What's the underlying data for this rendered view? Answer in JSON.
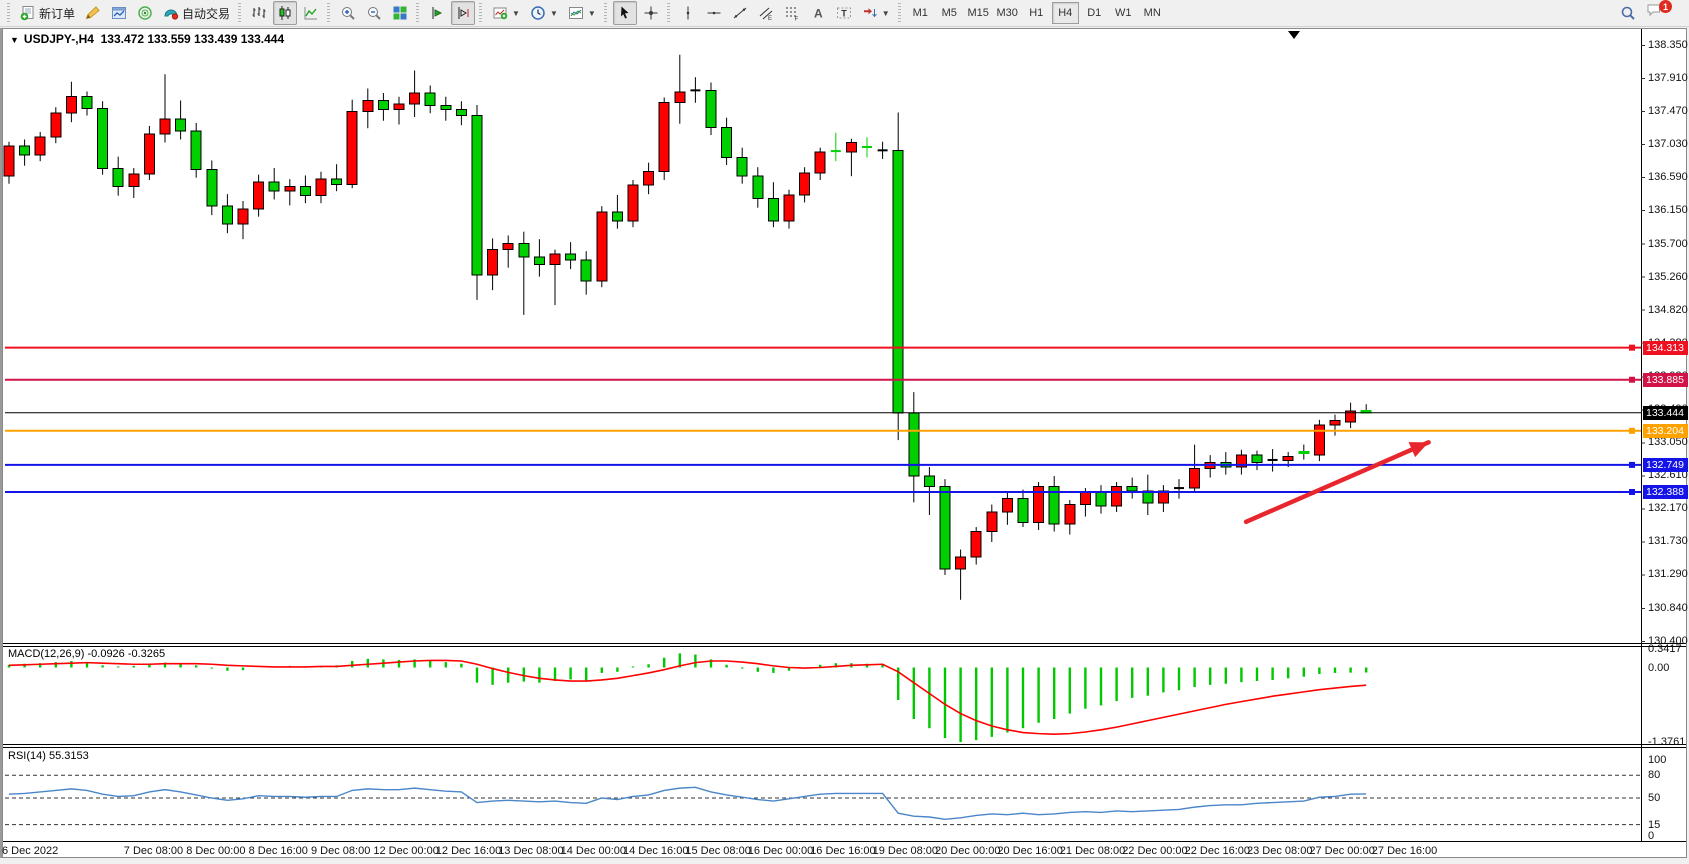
{
  "toolbar": {
    "groups": [
      {
        "name": "file",
        "buttons": [
          {
            "name": "new-order",
            "icon": "new-order-icon",
            "label": "新订单"
          },
          {
            "name": "styler",
            "icon": "crayon-icon"
          },
          {
            "name": "chart-window",
            "icon": "chart-window-icon"
          },
          {
            "name": "market-signal",
            "icon": "signal-icon"
          },
          {
            "name": "auto-trading",
            "icon": "autotrade-icon",
            "label": "自动交易"
          }
        ]
      },
      {
        "name": "chart-type",
        "buttons": [
          {
            "name": "bar-chart",
            "icon": "bars-icon"
          },
          {
            "name": "candlestick-chart",
            "icon": "candles-icon",
            "pressed": true
          },
          {
            "name": "line-chart",
            "icon": "line-icon"
          }
        ]
      },
      {
        "name": "zoom",
        "buttons": [
          {
            "name": "zoom-in",
            "icon": "zoom-in-icon"
          },
          {
            "name": "zoom-out",
            "icon": "zoom-out-icon"
          },
          {
            "name": "tile-windows",
            "icon": "tile-icon"
          }
        ]
      },
      {
        "name": "scroll",
        "buttons": [
          {
            "name": "auto-scroll",
            "icon": "autoscroll-icon"
          },
          {
            "name": "chart-shift",
            "icon": "shift-icon",
            "pressed": true
          }
        ]
      },
      {
        "name": "dropdowns",
        "buttons": [
          {
            "name": "indicators",
            "icon": "indicators-icon",
            "caret": true
          },
          {
            "name": "periods",
            "icon": "clock-icon",
            "caret": true
          },
          {
            "name": "templates",
            "icon": "template-icon",
            "caret": true
          }
        ]
      },
      {
        "name": "pointer",
        "buttons": [
          {
            "name": "cursor",
            "icon": "cursor-icon",
            "pressed": true
          },
          {
            "name": "crosshair",
            "icon": "crosshair-icon"
          }
        ]
      },
      {
        "name": "objects",
        "buttons": [
          {
            "name": "vertical-line",
            "icon": "vline-icon"
          },
          {
            "name": "horizontal-line",
            "icon": "hline-icon"
          },
          {
            "name": "trendline",
            "icon": "trendline-icon"
          },
          {
            "name": "equidistant-channel",
            "icon": "channel-icon"
          },
          {
            "name": "fibonacci",
            "icon": "fibonacci-icon"
          },
          {
            "name": "text",
            "icon": "text-icon"
          },
          {
            "name": "text-label",
            "icon": "label-icon"
          },
          {
            "name": "arrows",
            "icon": "arrows-icon",
            "caret": true
          }
        ]
      }
    ],
    "timeframes": [
      {
        "label": "M1"
      },
      {
        "label": "M5"
      },
      {
        "label": "M15"
      },
      {
        "label": "M30"
      },
      {
        "label": "H1"
      },
      {
        "label": "H4",
        "pressed": true
      },
      {
        "label": "D1"
      },
      {
        "label": "W1"
      },
      {
        "label": "MN"
      }
    ],
    "right": [
      {
        "name": "search",
        "icon": "search-icon"
      },
      {
        "name": "notifications",
        "icon": "chat-icon",
        "badge": "1"
      }
    ]
  },
  "chart": {
    "symbol_period": "USDJPY-,H4",
    "ohlc": "133.472 133.559 133.439 133.444"
  },
  "price_axis": {
    "ticks": [
      "138.350",
      "137.910",
      "137.470",
      "137.030",
      "136.590",
      "136.150",
      "135.700",
      "135.260",
      "134.820",
      "134.380",
      "133.930",
      "133.490",
      "133.050",
      "132.610",
      "132.170",
      "131.730",
      "131.290",
      "130.840",
      "130.400"
    ]
  },
  "hlines": [
    {
      "price": 134.313,
      "label": "134.313",
      "color": "#ef1020",
      "width": 2,
      "handle": true
    },
    {
      "price": 133.885,
      "label": "133.885",
      "color": "#d11348",
      "width": 2,
      "handle": true
    },
    {
      "price": 133.444,
      "label": "133.444",
      "color": "#000000",
      "width": 1,
      "handle": false
    },
    {
      "price": 133.204,
      "label": "133.204",
      "color": "#ffa200",
      "width": 2,
      "handle": true
    },
    {
      "price": 132.749,
      "label": "132.749",
      "color": "#1414e8",
      "width": 2,
      "handle": true
    },
    {
      "price": 132.388,
      "label": "132.388",
      "color": "#1414e8",
      "width": 2,
      "handle": true
    }
  ],
  "time_axis": {
    "labels": [
      {
        "i": 0,
        "label": "6 Dec 2022"
      },
      {
        "i": 8,
        "label": "7 Dec 08:00"
      },
      {
        "i": 12,
        "label": "8 Dec 00:00"
      },
      {
        "i": 16,
        "label": "8 Dec 16:00"
      },
      {
        "i": 20,
        "label": "9 Dec 08:00"
      },
      {
        "i": 24,
        "label": "12 Dec 00:00"
      },
      {
        "i": 28,
        "label": "12 Dec 16:00"
      },
      {
        "i": 32,
        "label": "13 Dec 08:00"
      },
      {
        "i": 36,
        "label": "14 Dec 00:00"
      },
      {
        "i": 40,
        "label": "14 Dec 16:00"
      },
      {
        "i": 44,
        "label": "15 Dec 08:00"
      },
      {
        "i": 48,
        "label": "16 Dec 00:00"
      },
      {
        "i": 52,
        "label": "16 Dec 16:00"
      },
      {
        "i": 56,
        "label": "19 Dec 08:00"
      },
      {
        "i": 60,
        "label": "20 Dec 00:00"
      },
      {
        "i": 64,
        "label": "20 Dec 16:00"
      },
      {
        "i": 68,
        "label": "21 Dec 08:00"
      },
      {
        "i": 72,
        "label": "22 Dec 00:00"
      },
      {
        "i": 76,
        "label": "22 Dec 16:00"
      },
      {
        "i": 80,
        "label": "23 Dec 08:00"
      },
      {
        "i": 84,
        "label": "27 Dec 00:00"
      },
      {
        "i": 88,
        "label": "27 Dec 16:00"
      }
    ]
  },
  "chart_data": {
    "type": "candlestick",
    "symbol": "USDJPY-",
    "timeframe": "H4",
    "up_color": "#ff0000",
    "down_color": "#00d000",
    "ylim": [
      130.4,
      138.35
    ],
    "candles": [
      [
        136.6,
        137.06,
        136.5,
        137.0
      ],
      [
        137.0,
        137.09,
        136.74,
        136.88
      ],
      [
        136.88,
        137.19,
        136.8,
        137.12
      ],
      [
        137.12,
        137.52,
        137.04,
        137.44
      ],
      [
        137.44,
        137.86,
        137.32,
        137.66
      ],
      [
        137.66,
        137.73,
        137.41,
        137.5
      ],
      [
        137.5,
        137.6,
        136.62,
        136.7
      ],
      [
        136.7,
        136.86,
        136.34,
        136.46
      ],
      [
        136.46,
        136.71,
        136.31,
        136.63
      ],
      [
        136.63,
        137.27,
        136.55,
        137.16
      ],
      [
        137.16,
        137.96,
        137.05,
        137.36
      ],
      [
        137.36,
        137.61,
        137.09,
        137.2
      ],
      [
        137.2,
        137.31,
        136.58,
        136.69
      ],
      [
        136.69,
        136.81,
        136.08,
        136.2
      ],
      [
        136.2,
        136.36,
        135.84,
        135.96
      ],
      [
        135.96,
        136.27,
        135.76,
        136.16
      ],
      [
        136.16,
        136.62,
        136.06,
        136.52
      ],
      [
        136.52,
        136.71,
        136.29,
        136.4
      ],
      [
        136.4,
        136.56,
        136.21,
        136.46
      ],
      [
        136.46,
        136.61,
        136.24,
        136.34
      ],
      [
        136.34,
        136.66,
        136.24,
        136.56
      ],
      [
        136.56,
        136.76,
        136.4,
        136.49
      ],
      [
        136.49,
        137.62,
        136.44,
        137.46
      ],
      [
        137.46,
        137.77,
        137.24,
        137.61
      ],
      [
        137.61,
        137.71,
        137.34,
        137.49
      ],
      [
        137.49,
        137.66,
        137.29,
        137.56
      ],
      [
        137.56,
        138.01,
        137.39,
        137.71
      ],
      [
        137.71,
        137.81,
        137.44,
        137.54
      ],
      [
        137.54,
        137.66,
        137.34,
        137.49
      ],
      [
        137.49,
        137.6,
        137.28,
        137.41
      ],
      [
        137.41,
        137.55,
        134.95,
        135.28
      ],
      [
        135.28,
        135.77,
        135.08,
        135.62
      ],
      [
        135.62,
        135.81,
        135.38,
        135.7
      ],
      [
        135.7,
        135.86,
        134.75,
        135.52
      ],
      [
        135.52,
        135.76,
        135.26,
        135.42
      ],
      [
        135.42,
        135.62,
        134.88,
        135.56
      ],
      [
        135.56,
        135.72,
        135.36,
        135.48
      ],
      [
        135.48,
        135.6,
        135.02,
        135.2
      ],
      [
        135.2,
        136.2,
        135.12,
        136.12
      ],
      [
        136.12,
        136.35,
        135.9,
        136.0
      ],
      [
        136.0,
        136.55,
        135.92,
        136.48
      ],
      [
        136.48,
        136.78,
        136.36,
        136.66
      ],
      [
        136.66,
        137.65,
        136.55,
        137.58
      ],
      [
        137.58,
        138.22,
        137.3,
        137.72
      ],
      [
        137.75,
        137.92,
        137.58,
        137.74,
        "k"
      ],
      [
        137.74,
        137.85,
        137.15,
        137.25
      ],
      [
        137.25,
        137.38,
        136.75,
        136.85
      ],
      [
        136.85,
        136.98,
        136.5,
        136.6
      ],
      [
        136.6,
        136.72,
        136.18,
        136.3
      ],
      [
        136.3,
        136.52,
        135.92,
        136.0
      ],
      [
        136.0,
        136.42,
        135.9,
        136.35
      ],
      [
        136.35,
        136.72,
        136.25,
        136.64
      ],
      [
        136.64,
        136.98,
        136.55,
        136.92
      ],
      [
        136.95,
        137.18,
        136.8,
        136.92,
        "gx"
      ],
      [
        136.92,
        137.1,
        136.6,
        137.05
      ],
      [
        137.0,
        137.12,
        136.85,
        136.98,
        "gx"
      ],
      [
        136.95,
        137.06,
        136.83,
        136.94,
        "k"
      ],
      [
        136.94,
        137.45,
        133.08,
        133.44
      ],
      [
        133.44,
        133.72,
        132.25,
        132.6
      ],
      [
        132.6,
        132.72,
        132.08,
        132.46
      ],
      [
        132.46,
        132.56,
        131.28,
        131.36
      ],
      [
        131.36,
        131.62,
        130.95,
        131.52
      ],
      [
        131.52,
        131.92,
        131.42,
        131.86
      ],
      [
        131.86,
        132.22,
        131.72,
        132.12
      ],
      [
        132.12,
        132.38,
        131.95,
        132.3
      ],
      [
        132.3,
        132.42,
        131.92,
        131.98
      ],
      [
        131.98,
        132.52,
        131.88,
        132.46
      ],
      [
        132.46,
        132.6,
        131.86,
        131.96
      ],
      [
        131.96,
        132.28,
        131.82,
        132.22
      ],
      [
        132.22,
        132.44,
        132.06,
        132.38
      ],
      [
        132.38,
        132.48,
        132.1,
        132.2
      ],
      [
        132.2,
        132.52,
        132.12,
        132.46
      ],
      [
        132.46,
        132.58,
        132.3,
        132.4
      ],
      [
        132.4,
        132.62,
        132.08,
        132.24
      ],
      [
        132.24,
        132.48,
        132.12,
        132.4
      ],
      [
        132.44,
        132.56,
        132.3,
        132.44,
        "k"
      ],
      [
        132.44,
        133.02,
        132.38,
        132.7
      ],
      [
        132.7,
        132.88,
        132.58,
        132.78
      ],
      [
        132.78,
        132.92,
        132.62,
        132.72
      ],
      [
        132.72,
        132.95,
        132.62,
        132.88
      ],
      [
        132.88,
        132.94,
        132.68,
        132.78
      ],
      [
        132.82,
        132.96,
        132.66,
        132.81,
        "k"
      ],
      [
        132.81,
        132.92,
        132.72,
        132.86
      ],
      [
        132.93,
        133.02,
        132.82,
        132.9
      ],
      [
        132.88,
        133.35,
        132.8,
        133.28
      ],
      [
        133.28,
        133.42,
        133.14,
        133.34
      ],
      [
        133.32,
        133.58,
        133.24,
        133.47
      ],
      [
        133.472,
        133.559,
        133.439,
        133.444
      ]
    ],
    "indicators": {
      "macd": {
        "label": "MACD(12,26,9)",
        "values": "-0.0926 -0.3265",
        "axis": [
          "0.3417",
          "0.00",
          "-1.3761"
        ],
        "hist_color": "#00c800",
        "signal_color": "#ff0000",
        "hist": [
          0.05,
          0.07,
          0.08,
          0.1,
          0.12,
          0.1,
          0.04,
          0.02,
          0.03,
          0.06,
          0.09,
          0.08,
          0.04,
          -0.02,
          -0.06,
          -0.05,
          0.0,
          0.02,
          0.03,
          0.02,
          0.03,
          0.04,
          0.12,
          0.16,
          0.15,
          0.14,
          0.15,
          0.13,
          0.1,
          0.07,
          -0.28,
          -0.32,
          -0.28,
          -0.26,
          -0.28,
          -0.25,
          -0.22,
          -0.24,
          -0.1,
          -0.08,
          0.02,
          0.06,
          0.18,
          0.26,
          0.24,
          0.15,
          0.05,
          -0.02,
          -0.08,
          -0.1,
          -0.06,
          0.0,
          0.05,
          0.08,
          0.08,
          0.07,
          0.06,
          -0.6,
          -0.95,
          -1.12,
          -1.3,
          -1.376,
          -1.34,
          -1.28,
          -1.2,
          -1.12,
          -1.02,
          -0.95,
          -0.85,
          -0.76,
          -0.7,
          -0.62,
          -0.56,
          -0.52,
          -0.46,
          -0.42,
          -0.36,
          -0.32,
          -0.3,
          -0.27,
          -0.25,
          -0.23,
          -0.2,
          -0.17,
          -0.12,
          -0.1,
          -0.095,
          -0.0926
        ],
        "signal": [
          0.04,
          0.05,
          0.06,
          0.07,
          0.08,
          0.09,
          0.08,
          0.07,
          0.06,
          0.06,
          0.07,
          0.07,
          0.07,
          0.06,
          0.04,
          0.03,
          0.02,
          0.01,
          0.01,
          0.01,
          0.02,
          0.02,
          0.04,
          0.06,
          0.08,
          0.1,
          0.12,
          0.13,
          0.13,
          0.12,
          0.06,
          -0.02,
          -0.09,
          -0.15,
          -0.2,
          -0.23,
          -0.25,
          -0.25,
          -0.23,
          -0.2,
          -0.15,
          -0.1,
          -0.04,
          0.03,
          0.09,
          0.12,
          0.12,
          0.1,
          0.07,
          0.03,
          0.0,
          -0.01,
          0.0,
          0.02,
          0.04,
          0.05,
          0.06,
          -0.08,
          -0.28,
          -0.48,
          -0.68,
          -0.85,
          -0.98,
          -1.08,
          -1.15,
          -1.2,
          -1.22,
          -1.23,
          -1.22,
          -1.19,
          -1.15,
          -1.1,
          -1.04,
          -0.98,
          -0.92,
          -0.86,
          -0.8,
          -0.74,
          -0.68,
          -0.63,
          -0.58,
          -0.53,
          -0.49,
          -0.45,
          -0.41,
          -0.38,
          -0.35,
          -0.3265
        ]
      },
      "rsi": {
        "label": "RSI(14)",
        "value": "55.3153",
        "axis": [
          "100",
          "80",
          "50",
          "15",
          "0"
        ],
        "levels": [
          80,
          50,
          15
        ],
        "line_color": "#4a86c8",
        "values": [
          55,
          56,
          58,
          60,
          62,
          60,
          55,
          52,
          53,
          58,
          61,
          58,
          54,
          50,
          47,
          49,
          53,
          52,
          52,
          51,
          52,
          52,
          60,
          62,
          61,
          61,
          63,
          61,
          59,
          58,
          44,
          46,
          47,
          46,
          45,
          46,
          44,
          43,
          50,
          48,
          52,
          54,
          60,
          63,
          64,
          58,
          54,
          51,
          48,
          46,
          49,
          52,
          55,
          56,
          56,
          56,
          56,
          30,
          26,
          25,
          22,
          24,
          27,
          29,
          28,
          30,
          28,
          29,
          31,
          32,
          31,
          33,
          32,
          33,
          34,
          35,
          38,
          40,
          41,
          41,
          43,
          44,
          45,
          46,
          51,
          52,
          55,
          55.3
        ]
      }
    }
  },
  "annotations": {
    "trend_arrow": {
      "from_index": 79.3,
      "from_price": 131.99,
      "to_index": 91.0,
      "to_price": 133.05,
      "color": "#e8262d"
    }
  }
}
